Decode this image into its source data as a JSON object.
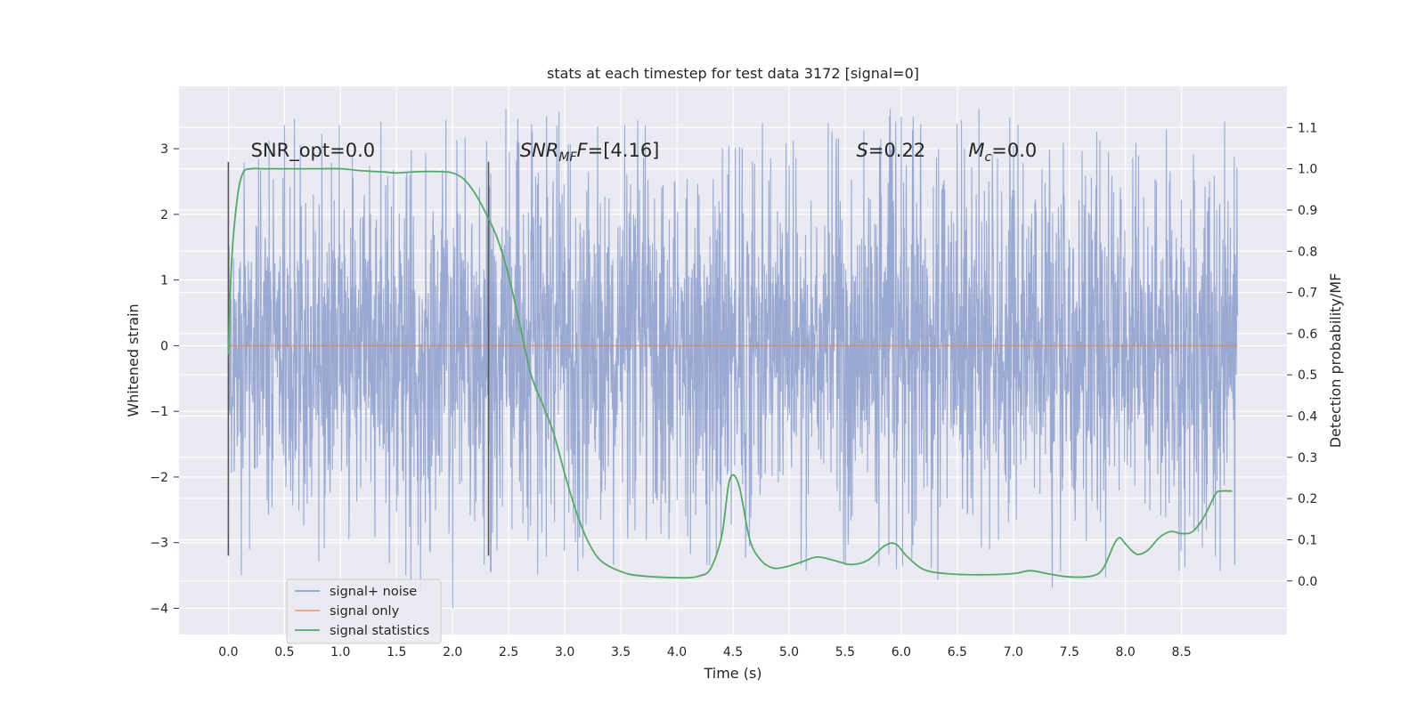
{
  "chart_data": {
    "type": "line",
    "title": "stats at each timestep for test data 3172 [signal=0]",
    "xlabel": "Time (s)",
    "ylabel": "Whitened strain",
    "y2label": "Detection probability/MF",
    "xlim": [
      -0.44,
      9.44
    ],
    "ylim": [
      -4.4,
      3.95
    ],
    "y2lim": [
      -0.13,
      1.2
    ],
    "xticks": [
      "0.0",
      "0.5",
      "1.0",
      "1.5",
      "2.0",
      "2.5",
      "3.0",
      "3.5",
      "4.0",
      "4.5",
      "5.0",
      "5.5",
      "6.0",
      "6.5",
      "7.0",
      "7.5",
      "8.0",
      "8.5"
    ],
    "yticks": [
      "3",
      "2",
      "1",
      "0",
      "−1",
      "−2",
      "−3",
      "−4"
    ],
    "y2ticks": [
      "1.1",
      "1.0",
      "0.9",
      "0.8",
      "0.7",
      "0.6",
      "0.5",
      "0.4",
      "0.3",
      "0.2",
      "0.1",
      "0.0"
    ],
    "grid": true,
    "legend": {
      "placement": "lower-left"
    },
    "series": [
      {
        "name": "signal+ noise",
        "color": "#8c9ecc",
        "axis": "left",
        "t_range": [
          0,
          9.0
        ],
        "envelope": {
          "typical_abs": 1.6,
          "max": 3.6,
          "min": -4.0
        },
        "note_values": "dense noise trace"
      },
      {
        "name": "signal only",
        "color": "#dd8452",
        "axis": "left",
        "x": [
          0,
          9.0
        ],
        "y": [
          0,
          0
        ]
      },
      {
        "name": "signal statistics",
        "color": "#55a868",
        "axis": "right",
        "x": [
          0.0,
          0.03,
          0.08,
          0.13,
          0.2,
          0.3,
          0.5,
          0.8,
          1.0,
          1.2,
          1.4,
          1.5,
          1.7,
          1.9,
          2.0,
          2.1,
          2.2,
          2.3,
          2.4,
          2.5,
          2.6,
          2.7,
          2.8,
          2.9,
          3.0,
          3.1,
          3.2,
          3.3,
          3.4,
          3.5,
          3.6,
          3.8,
          4.0,
          4.1,
          4.2,
          4.3,
          4.4,
          4.47,
          4.55,
          4.65,
          4.75,
          4.85,
          4.95,
          5.1,
          5.25,
          5.4,
          5.55,
          5.7,
          5.85,
          5.95,
          6.05,
          6.2,
          6.4,
          6.7,
          7.0,
          7.15,
          7.3,
          7.5,
          7.7,
          7.8,
          7.9,
          7.95,
          8.0,
          8.1,
          8.2,
          8.3,
          8.4,
          8.5,
          8.6,
          8.7,
          8.8,
          8.85,
          8.95
        ],
        "y": [
          0.55,
          0.78,
          0.93,
          0.99,
          1.0,
          1.0,
          1.0,
          1.0,
          1.0,
          0.995,
          0.992,
          0.99,
          0.993,
          0.993,
          0.99,
          0.975,
          0.94,
          0.89,
          0.83,
          0.74,
          0.62,
          0.5,
          0.43,
          0.36,
          0.26,
          0.17,
          0.1,
          0.055,
          0.035,
          0.023,
          0.015,
          0.01,
          0.008,
          0.008,
          0.012,
          0.03,
          0.11,
          0.245,
          0.235,
          0.1,
          0.05,
          0.032,
          0.033,
          0.045,
          0.058,
          0.05,
          0.04,
          0.05,
          0.085,
          0.09,
          0.06,
          0.028,
          0.018,
          0.015,
          0.018,
          0.025,
          0.018,
          0.01,
          0.012,
          0.03,
          0.09,
          0.105,
          0.09,
          0.065,
          0.075,
          0.105,
          0.12,
          0.115,
          0.12,
          0.155,
          0.21,
          0.218,
          0.218
        ]
      }
    ],
    "vlines": [
      {
        "x": 0.0,
        "ymin": -3.2,
        "ymax": 2.8
      },
      {
        "x": 2.32,
        "ymin": -3.2,
        "ymax": 2.8
      }
    ],
    "annotations": [
      {
        "x": 0.2,
        "y": 2.88,
        "plain": "SNR_opt=0.0"
      },
      {
        "x": 2.6,
        "y": 2.88,
        "main": "SNR",
        "sub": "MF",
        "rest": "=[4.16]",
        "italic_rest": "F"
      },
      {
        "x": 5.6,
        "y": 2.88,
        "main": "S",
        "rest": "=0.22"
      },
      {
        "x": 6.6,
        "y": 2.88,
        "main": "M",
        "sub": "c",
        "rest": "=0.0"
      }
    ]
  }
}
